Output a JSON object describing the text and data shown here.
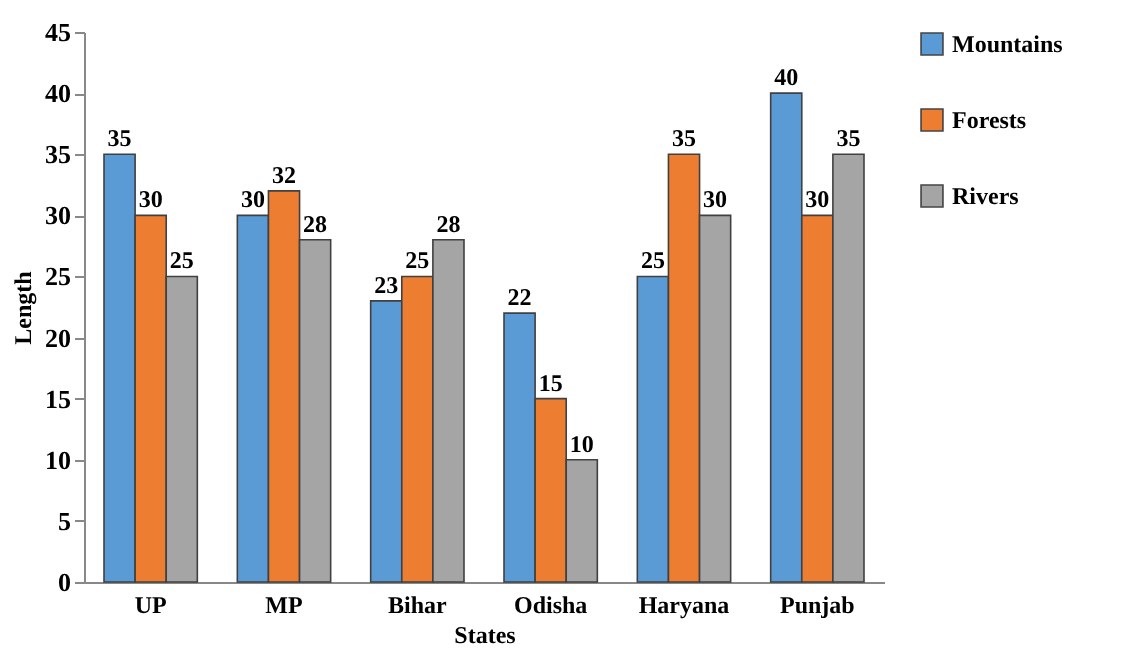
{
  "chart_data": {
    "type": "bar",
    "xlabel": "States",
    "ylabel": "Length",
    "categories": [
      "UP",
      "MP",
      "Bihar",
      "Odisha",
      "Haryana",
      "Punjab"
    ],
    "series": [
      {
        "name": "Mountains",
        "color": "#5b9bd5",
        "values": [
          35,
          30,
          23,
          22,
          25,
          40
        ]
      },
      {
        "name": "Forests",
        "color": "#ed7d31",
        "values": [
          30,
          32,
          25,
          15,
          35,
          30
        ]
      },
      {
        "name": "Rivers",
        "color": "#a5a5a5",
        "values": [
          25,
          28,
          28,
          10,
          30,
          35
        ]
      }
    ],
    "ylim": [
      0,
      45
    ],
    "yticks": [
      0,
      5,
      10,
      15,
      20,
      25,
      30,
      35,
      40,
      45
    ],
    "data_labels": true,
    "legend": "right"
  }
}
